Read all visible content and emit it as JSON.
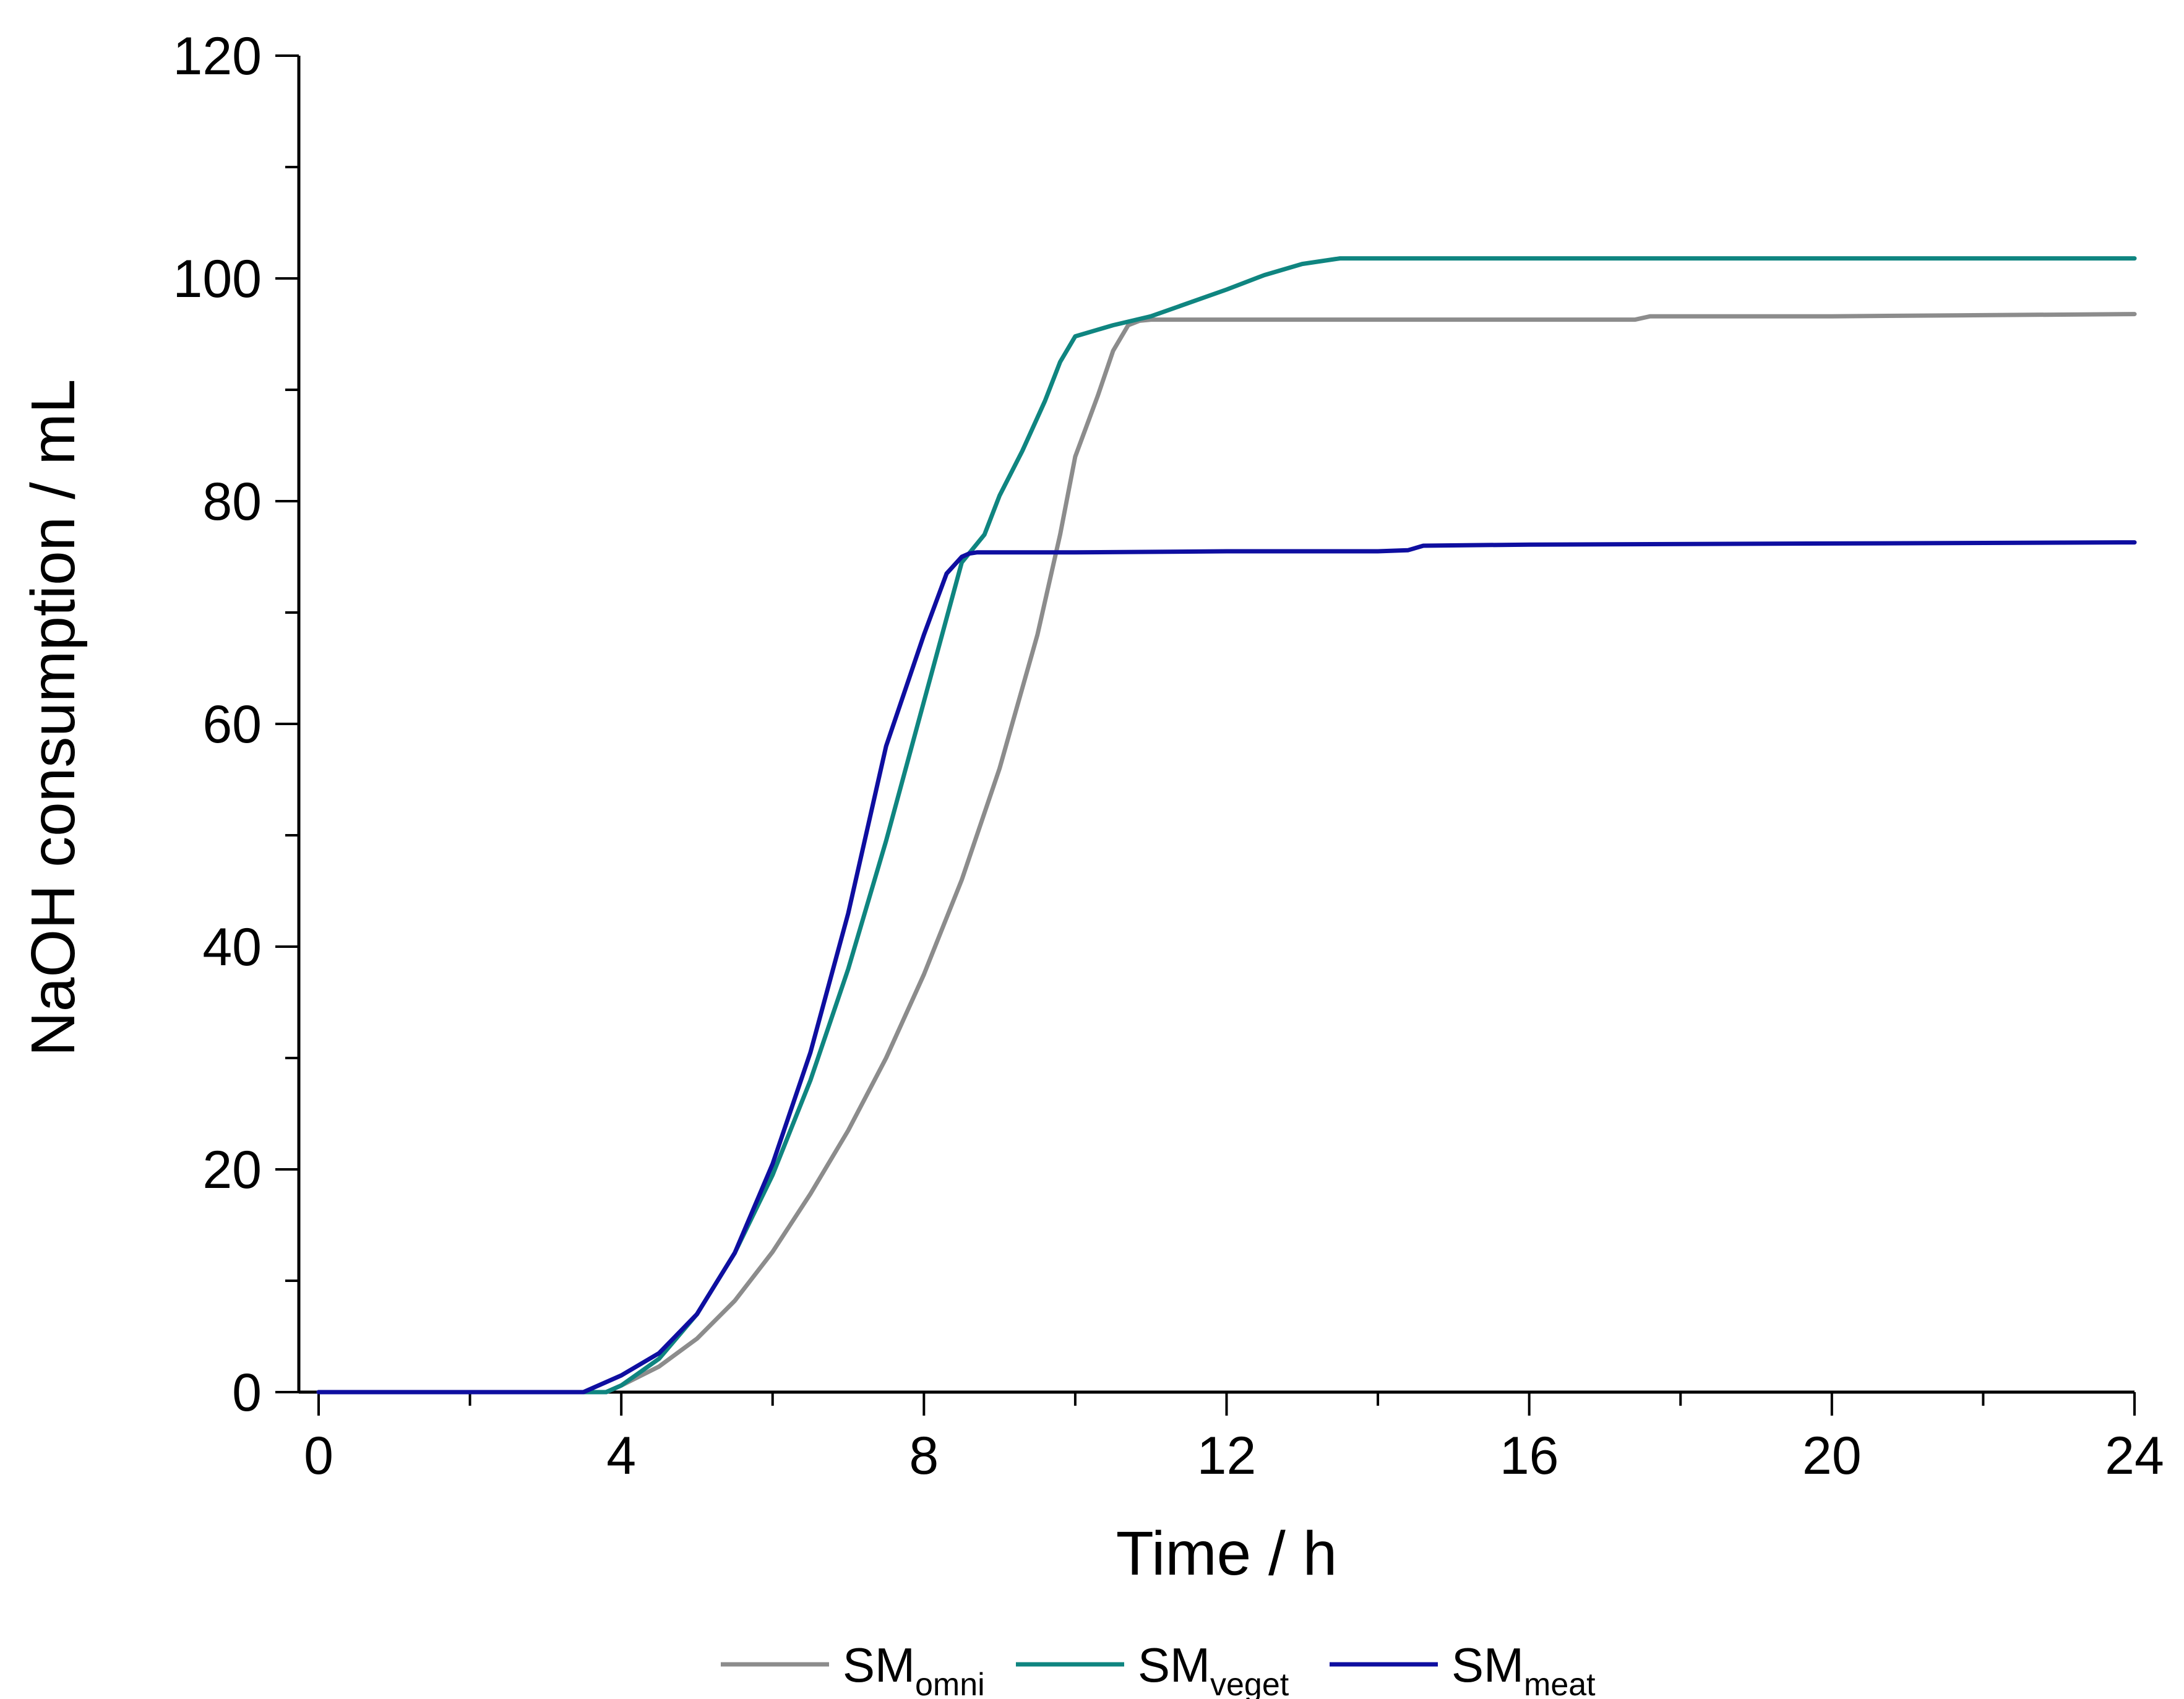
{
  "chart_data": {
    "type": "line",
    "title": "",
    "xlabel": "Time / h",
    "ylabel": "NaOH consumption / mL",
    "xlim": [
      0,
      24
    ],
    "ylim": [
      0,
      120
    ],
    "x_ticks": [
      0,
      4,
      8,
      12,
      16,
      20,
      24
    ],
    "x_tick_labels": [
      "0",
      "4",
      "8",
      "12",
      "16",
      "20",
      "24"
    ],
    "x_minor_step": 2,
    "y_ticks": [
      0,
      20,
      40,
      60,
      80,
      100,
      120
    ],
    "y_tick_labels": [
      "0",
      "20",
      "40",
      "60",
      "80",
      "100",
      "120"
    ],
    "y_minor_step": 10,
    "grid": false,
    "legend_position": "bottom",
    "series": [
      {
        "name": "SMomni",
        "label_main": "SM",
        "label_sub": "omni",
        "color": "#8c8c8c",
        "x": [
          0,
          3.8,
          4.0,
          4.5,
          5.0,
          5.5,
          6.0,
          6.5,
          7.0,
          7.5,
          8.0,
          8.5,
          9.0,
          9.5,
          9.8,
          10.0,
          10.3,
          10.5,
          10.7,
          10.85,
          11.0,
          12.0,
          14.0,
          16.0,
          17.4,
          17.6,
          20.0,
          22.0,
          24.0
        ],
        "y": [
          0,
          0,
          0.6,
          2.3,
          4.8,
          8.2,
          12.6,
          17.8,
          23.5,
          30.0,
          37.5,
          46.0,
          56.0,
          68.0,
          77.0,
          84.0,
          89.5,
          93.5,
          95.8,
          96.2,
          96.3,
          96.3,
          96.3,
          96.3,
          96.3,
          96.6,
          96.6,
          96.7,
          96.8
        ]
      },
      {
        "name": "SMveget",
        "label_main": "SM",
        "label_sub": "veget",
        "color": "#0f8580",
        "x": [
          0,
          3.8,
          4.0,
          4.5,
          5.0,
          5.5,
          6.0,
          6.5,
          7.0,
          7.5,
          8.0,
          8.5,
          8.8,
          9.0,
          9.3,
          9.6,
          9.8,
          10.0,
          10.5,
          11.0,
          11.5,
          12.0,
          12.5,
          13.0,
          13.5,
          16.0,
          20.0,
          24.0
        ],
        "y": [
          0,
          0,
          0.6,
          3.0,
          7.0,
          12.5,
          19.5,
          28.0,
          38.0,
          49.5,
          62.0,
          74.5,
          77.0,
          80.5,
          84.5,
          89.0,
          92.5,
          94.8,
          95.8,
          96.6,
          97.8,
          99.0,
          100.3,
          101.3,
          101.8,
          101.8,
          101.8,
          101.8
        ]
      },
      {
        "name": "SMmeat",
        "label_main": "SM",
        "label_sub": "meat",
        "color": "#0e0ea0",
        "x": [
          0,
          3.5,
          4.0,
          4.5,
          5.0,
          5.5,
          6.0,
          6.5,
          7.0,
          7.5,
          8.0,
          8.3,
          8.5,
          8.6,
          8.7,
          10.0,
          12.0,
          14.0,
          14.4,
          14.6,
          16.0,
          20.0,
          24.0
        ],
        "y": [
          0,
          0,
          1.5,
          3.5,
          7.0,
          12.5,
          20.5,
          30.5,
          43.0,
          58.0,
          68.0,
          73.5,
          75.0,
          75.3,
          75.4,
          75.4,
          75.5,
          75.5,
          75.6,
          76.0,
          76.1,
          76.2,
          76.3
        ]
      }
    ]
  }
}
